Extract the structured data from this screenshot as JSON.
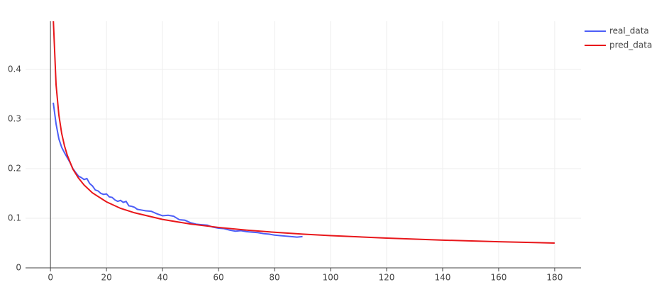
{
  "chart_data": {
    "type": "line",
    "xlim": [
      -8.9,
      189.4
    ],
    "ylim": [
      0,
      0.497
    ],
    "xticks": [
      0,
      20,
      40,
      60,
      80,
      100,
      120,
      140,
      160,
      180
    ],
    "yticks": [
      0,
      0.1,
      0.2,
      0.3,
      0.4
    ],
    "grid": true,
    "legend": "right",
    "series": [
      {
        "name": "real_data",
        "color": "#4c5ef7",
        "x": [
          1,
          2,
          3,
          4,
          5,
          6,
          7,
          8,
          9,
          10,
          11,
          12,
          13,
          14,
          15,
          16,
          17,
          18,
          19,
          20,
          21,
          22,
          23,
          24,
          25,
          26,
          27,
          28,
          29,
          30,
          31,
          32,
          34,
          36,
          38,
          40,
          42,
          44,
          46,
          48,
          50,
          52,
          54,
          56,
          58,
          60,
          62,
          64,
          66,
          68,
          70,
          72,
          74,
          76,
          78,
          80,
          82,
          84,
          86,
          88,
          90
        ],
        "values": [
          0.333,
          0.29,
          0.26,
          0.243,
          0.232,
          0.222,
          0.212,
          0.2,
          0.192,
          0.185,
          0.182,
          0.178,
          0.18,
          0.17,
          0.165,
          0.157,
          0.155,
          0.15,
          0.148,
          0.149,
          0.143,
          0.142,
          0.137,
          0.134,
          0.136,
          0.132,
          0.134,
          0.125,
          0.124,
          0.122,
          0.118,
          0.117,
          0.115,
          0.114,
          0.109,
          0.105,
          0.106,
          0.104,
          0.097,
          0.096,
          0.091,
          0.088,
          0.087,
          0.086,
          0.082,
          0.08,
          0.079,
          0.076,
          0.074,
          0.075,
          0.073,
          0.072,
          0.071,
          0.069,
          0.068,
          0.066,
          0.065,
          0.064,
          0.063,
          0.062,
          0.063
        ]
      },
      {
        "name": "pred_data",
        "color": "#e8171b",
        "x": [
          1,
          2,
          3,
          4,
          5,
          6,
          8,
          10,
          12,
          15,
          20,
          25,
          30,
          40,
          50,
          60,
          70,
          80,
          90,
          100,
          120,
          140,
          160,
          180
        ],
        "values": [
          0.502,
          0.369,
          0.308,
          0.271,
          0.246,
          0.227,
          0.199,
          0.181,
          0.167,
          0.151,
          0.133,
          0.12,
          0.111,
          0.0976,
          0.0883,
          0.0815,
          0.0761,
          0.0717,
          0.0681,
          0.065,
          0.0599,
          0.0559,
          0.0527,
          0.05
        ]
      }
    ]
  }
}
